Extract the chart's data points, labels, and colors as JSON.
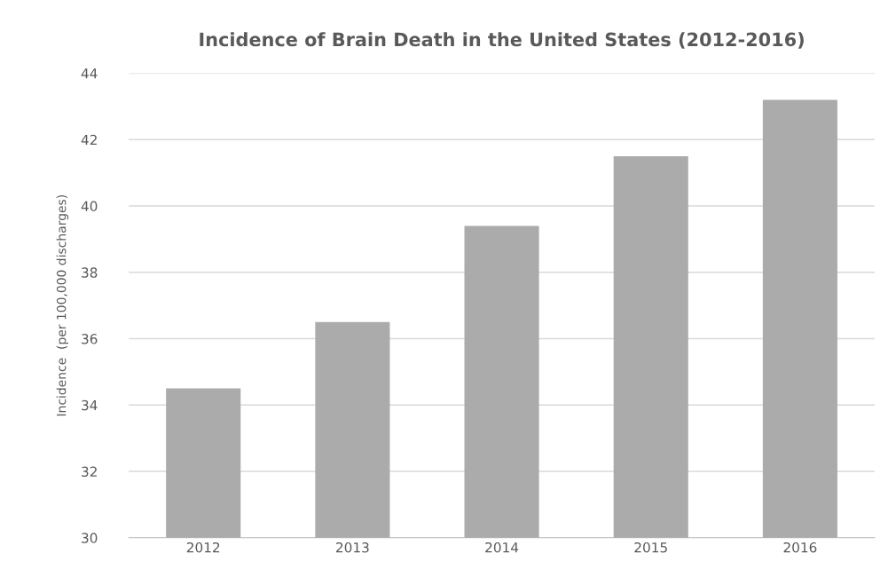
{
  "chart_data": {
    "type": "bar",
    "title": "Incidence of Brain Death in the United States (2012-2016)",
    "ylabel": "Incidence  (per 100,000 discharges)",
    "categories": [
      "2012",
      "2013",
      "2014",
      "2015",
      "2016"
    ],
    "values": [
      34.5,
      36.5,
      39.4,
      41.5,
      43.2
    ],
    "color": "#ababab",
    "ylim": [
      30,
      44
    ],
    "yticks": [
      30,
      32,
      34,
      36,
      38,
      40,
      42,
      44
    ],
    "grid": "y"
  }
}
